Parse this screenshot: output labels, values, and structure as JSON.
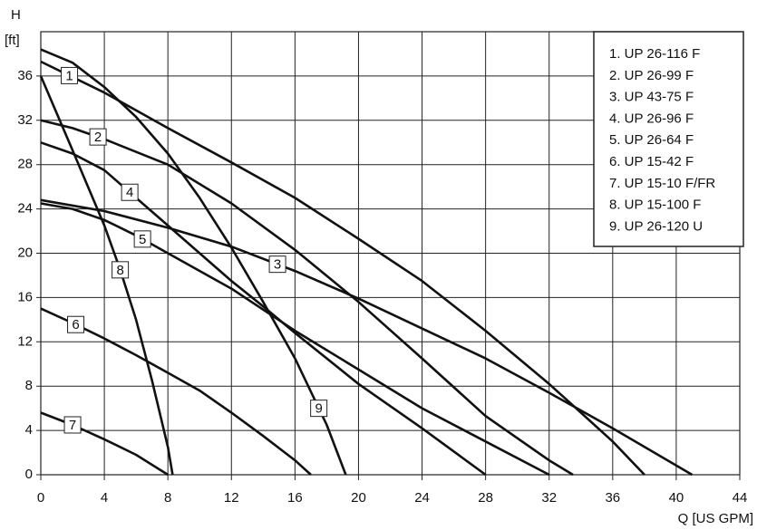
{
  "chart_data": {
    "type": "line",
    "y_label_lines": [
      "H",
      "[ft]"
    ],
    "x_label": "Q [US GPM]",
    "xlim": [
      0,
      44
    ],
    "xticks": [
      0,
      4,
      8,
      12,
      16,
      20,
      24,
      28,
      32,
      36,
      40,
      44
    ],
    "ylim": [
      0,
      40
    ],
    "yticks": [
      0,
      4,
      8,
      12,
      16,
      20,
      24,
      28,
      32,
      36
    ],
    "grid": true,
    "legend": "top-right",
    "series": [
      {
        "name": "1.  UP 26-116 F",
        "label": "1",
        "color": "#111111",
        "x": [
          0,
          4,
          8,
          12,
          16,
          20,
          24,
          28,
          32,
          34,
          36,
          38
        ],
        "values": [
          37.3,
          34.5,
          31.3,
          28.2,
          25,
          21.3,
          17.5,
          13,
          8.2,
          5.6,
          3,
          0
        ]
      },
      {
        "name": "2.  UP 26-99 F",
        "label": "2",
        "color": "#111111",
        "x": [
          0,
          2,
          4,
          8,
          12,
          16,
          20,
          24,
          28,
          32,
          33.5
        ],
        "values": [
          32,
          31.3,
          30.3,
          28,
          24.5,
          20.3,
          15.6,
          10.5,
          5.3,
          1.3,
          0
        ]
      },
      {
        "name": "3.  UP 43-75 F",
        "label": "3",
        "color": "#111111",
        "x": [
          0,
          4,
          8,
          12,
          16,
          20,
          24,
          28,
          32,
          36,
          41
        ],
        "values": [
          24.8,
          23.8,
          22.3,
          20.6,
          18.4,
          15.9,
          13.2,
          10.5,
          7.4,
          4.2,
          0
        ]
      },
      {
        "name": "4.  UP 26-96 F",
        "label": "4",
        "color": "#111111",
        "x": [
          0,
          2,
          4,
          6,
          8,
          10,
          12,
          14,
          16,
          20,
          24,
          28
        ],
        "values": [
          30,
          29,
          27.5,
          25,
          22.5,
          20,
          17.5,
          15.2,
          12.8,
          8.2,
          4.2,
          0
        ]
      },
      {
        "name": "5.  UP 26-64 F",
        "label": "5",
        "color": "#111111",
        "x": [
          0,
          2,
          4,
          6,
          8,
          12,
          16,
          20,
          24,
          28,
          32
        ],
        "values": [
          24.5,
          24,
          23,
          21.6,
          20,
          16.8,
          13,
          9.5,
          6,
          3,
          0
        ]
      },
      {
        "name": "6.  UP 15-42 F",
        "label": "6",
        "color": "#111111",
        "x": [
          0,
          2,
          4,
          6,
          8,
          10,
          12,
          14,
          16,
          17
        ],
        "values": [
          15,
          13.7,
          12.3,
          10.8,
          9.2,
          7.6,
          5.6,
          3.5,
          1.3,
          0
        ]
      },
      {
        "name": "7.  UP 15-10 F/FR",
        "label": "7",
        "color": "#111111",
        "x": [
          0,
          2,
          4,
          6,
          8
        ],
        "values": [
          5.6,
          4.5,
          3.2,
          1.8,
          0
        ]
      },
      {
        "name": "8.  UP 15-100 F",
        "label": "8",
        "color": "#111111",
        "x": [
          0,
          2,
          4,
          5,
          6,
          7,
          8,
          8.3
        ],
        "values": [
          36,
          29.3,
          22.5,
          18.5,
          14,
          8.5,
          2.5,
          0
        ]
      },
      {
        "name": "9.  UP 26-120 U",
        "label": "9",
        "color": "#111111",
        "x": [
          0,
          2,
          4,
          6,
          8,
          10,
          12,
          14,
          16,
          18,
          19.2
        ],
        "values": [
          38.4,
          37.2,
          35,
          32.3,
          29,
          25,
          20.5,
          15.6,
          10.5,
          4.5,
          0
        ]
      }
    ]
  }
}
